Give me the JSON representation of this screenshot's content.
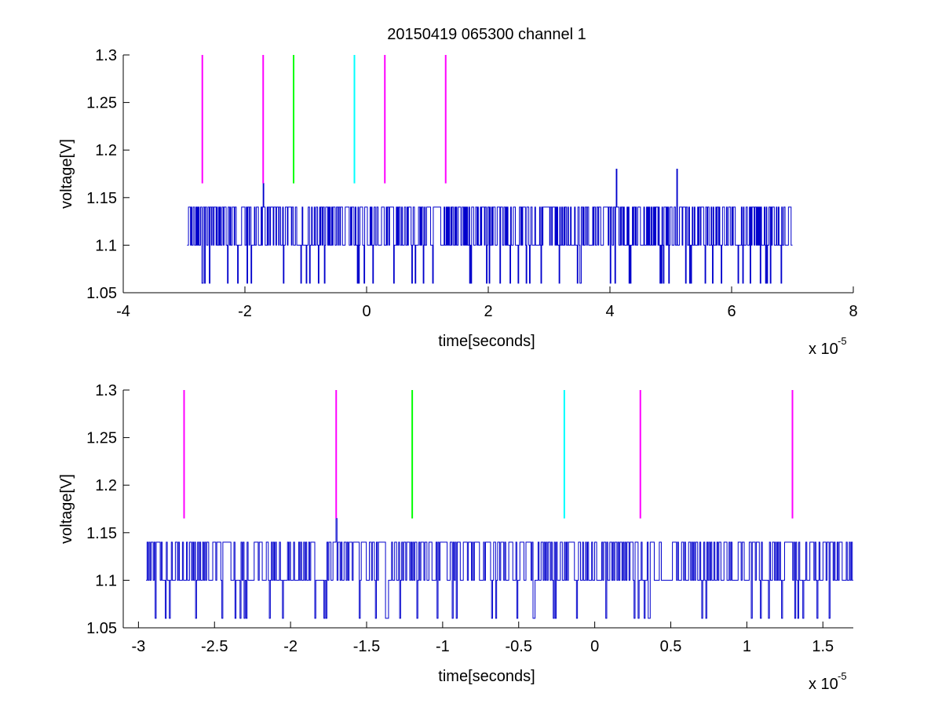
{
  "figure": {
    "title": "20150419 065300 channel 1"
  },
  "colors": {
    "signal": "#0000cc",
    "magenta": "#ff00ff",
    "green": "#00ff00",
    "cyan": "#00ffff",
    "axis": "#000000"
  },
  "chart_data": [
    {
      "type": "line",
      "title": "20150419 065300 channel 1",
      "xlabel": "time[seconds]",
      "ylabel": "voltage[V]",
      "x_exponent_label": "x 10",
      "x_exponent_sup": "-5",
      "xlim": [
        -4e-05,
        8e-05
      ],
      "ylim": [
        1.05,
        1.3
      ],
      "xticks": [
        -4,
        -2,
        0,
        2,
        4,
        6,
        8
      ],
      "xtick_labels": [
        "-4",
        "-2",
        "0",
        "2",
        "4",
        "6",
        "8"
      ],
      "yticks": [
        1.05,
        1.1,
        1.15,
        1.2,
        1.25,
        1.3
      ],
      "ytick_labels": [
        "1.05",
        "1.1",
        "1.15",
        "1.2",
        "1.25",
        "1.3"
      ],
      "grid": false,
      "signal": {
        "x_start": -2.95e-05,
        "x_end": 7e-05,
        "levels": [
          1.06,
          1.1,
          1.14
        ],
        "baseline": 1.1,
        "spikes": [
          {
            "x": -1.7e-05,
            "y": 1.165
          },
          {
            "x": 4.1e-05,
            "y": 1.18
          },
          {
            "x": 5.1e-05,
            "y": 1.18
          }
        ]
      },
      "markers": [
        {
          "x": -2.7e-05,
          "color": "magenta",
          "y_from": 1.165,
          "y_to": 1.3
        },
        {
          "x": -1.7e-05,
          "color": "magenta",
          "y_from": 1.165,
          "y_to": 1.3
        },
        {
          "x": -1.2e-05,
          "color": "green",
          "y_from": 1.165,
          "y_to": 1.3
        },
        {
          "x": -2e-06,
          "color": "cyan",
          "y_from": 1.165,
          "y_to": 1.3
        },
        {
          "x": 3e-06,
          "color": "magenta",
          "y_from": 1.165,
          "y_to": 1.3
        },
        {
          "x": 1.3e-05,
          "color": "magenta",
          "y_from": 1.165,
          "y_to": 1.3
        }
      ]
    },
    {
      "type": "line",
      "title": "",
      "xlabel": "time[seconds]",
      "ylabel": "voltage[V]",
      "x_exponent_label": "x 10",
      "x_exponent_sup": "-5",
      "xlim": [
        -3.1e-05,
        1.7e-05
      ],
      "ylim": [
        1.05,
        1.3
      ],
      "xticks": [
        -3,
        -2.5,
        -2,
        -1.5,
        -1,
        -0.5,
        0,
        0.5,
        1,
        1.5
      ],
      "xtick_labels": [
        "-3",
        "-2.5",
        "-2",
        "-1.5",
        "-1",
        "-0.5",
        "0",
        "0.5",
        "1",
        "1.5"
      ],
      "yticks": [
        1.05,
        1.1,
        1.15,
        1.2,
        1.25,
        1.3
      ],
      "ytick_labels": [
        "1.05",
        "1.1",
        "1.15",
        "1.2",
        "1.25",
        "1.3"
      ],
      "grid": false,
      "signal": {
        "x_start": -2.95e-05,
        "x_end": 1.7e-05,
        "levels": [
          1.06,
          1.1,
          1.14
        ],
        "baseline": 1.1,
        "spikes": [
          {
            "x": -1.7e-05,
            "y": 1.165
          }
        ]
      },
      "markers": [
        {
          "x": -2.7e-05,
          "color": "magenta",
          "y_from": 1.165,
          "y_to": 1.3
        },
        {
          "x": -1.7e-05,
          "color": "magenta",
          "y_from": 1.165,
          "y_to": 1.3
        },
        {
          "x": -1.2e-05,
          "color": "green",
          "y_from": 1.165,
          "y_to": 1.3
        },
        {
          "x": -2e-06,
          "color": "cyan",
          "y_from": 1.165,
          "y_to": 1.3
        },
        {
          "x": 3e-06,
          "color": "magenta",
          "y_from": 1.165,
          "y_to": 1.3
        },
        {
          "x": 1.3e-05,
          "color": "magenta",
          "y_from": 1.165,
          "y_to": 1.3
        }
      ]
    }
  ]
}
